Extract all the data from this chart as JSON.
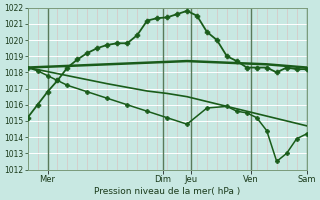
{
  "xlabel": "Pression niveau de la mer( hPa )",
  "ylim": [
    1012,
    1022
  ],
  "xlim": [
    0,
    7
  ],
  "bg_color": "#c8e8e2",
  "line_color": "#1a5c1a",
  "grid_h_color": "#ffffff",
  "grid_v_color": "#ddbcbc",
  "day_vline_color": "#5a7a5a",
  "series": [
    {
      "x": [
        0.0,
        0.25,
        0.5,
        0.75,
        1.0,
        1.25,
        1.5,
        1.75,
        2.0,
        2.25,
        2.5,
        2.75,
        3.0,
        3.25,
        3.5,
        3.75,
        4.0,
        4.25,
        4.5,
        4.75,
        5.0,
        5.25,
        5.5,
        5.75,
        6.0,
        6.25,
        6.5,
        6.75,
        7.0
      ],
      "y": [
        1015.2,
        1016.0,
        1016.8,
        1017.5,
        1018.3,
        1018.8,
        1019.2,
        1019.5,
        1019.7,
        1019.8,
        1019.8,
        1020.3,
        1021.2,
        1021.35,
        1021.4,
        1021.6,
        1021.8,
        1021.5,
        1020.5,
        1020.0,
        1019.0,
        1018.7,
        1018.3,
        1018.3,
        1018.3,
        1018.0,
        1018.3,
        1018.2,
        1018.2
      ],
      "marker": "P",
      "lw": 1.3,
      "ms": 3.5
    },
    {
      "x": [
        0.0,
        1.0,
        2.0,
        3.0,
        3.5,
        4.0,
        5.0,
        5.5,
        6.0,
        6.5,
        7.0
      ],
      "y": [
        1018.3,
        1018.4,
        1018.5,
        1018.6,
        1018.65,
        1018.7,
        1018.6,
        1018.55,
        1018.5,
        1018.4,
        1018.3
      ],
      "marker": null,
      "lw": 1.8,
      "ms": 0
    },
    {
      "x": [
        0.0,
        1.0,
        2.0,
        3.0,
        3.5,
        4.0,
        5.0,
        5.5,
        6.0,
        6.5,
        7.0
      ],
      "y": [
        1018.3,
        1017.8,
        1017.3,
        1016.85,
        1016.7,
        1016.5,
        1015.9,
        1015.6,
        1015.3,
        1015.0,
        1014.7
      ],
      "marker": null,
      "lw": 1.2,
      "ms": 0
    },
    {
      "x": [
        0.0,
        0.25,
        0.5,
        0.75,
        1.0,
        1.5,
        2.0,
        2.5,
        3.0,
        3.5,
        4.0,
        4.5,
        5.0,
        5.25,
        5.5,
        5.75,
        6.0,
        6.25,
        6.5,
        6.75,
        7.0
      ],
      "y": [
        1018.3,
        1018.1,
        1017.8,
        1017.5,
        1017.2,
        1016.8,
        1016.4,
        1016.0,
        1015.6,
        1015.2,
        1014.8,
        1015.8,
        1015.9,
        1015.6,
        1015.5,
        1015.2,
        1014.4,
        1012.5,
        1013.0,
        1013.9,
        1014.2
      ],
      "marker": "P",
      "lw": 1.1,
      "ms": 3.0
    }
  ],
  "yticks": [
    1012,
    1013,
    1014,
    1015,
    1016,
    1017,
    1018,
    1019,
    1020,
    1021,
    1022
  ],
  "xtick_positions": [
    0.5,
    3.4,
    4.1,
    5.6,
    7.0
  ],
  "xtick_labels": [
    "Mer",
    "Dim",
    "Jeu",
    "Ven",
    "Sam"
  ],
  "vline_positions": [
    0.5,
    3.4,
    4.1,
    5.6,
    7.0
  ],
  "minor_vline_step": 0.25
}
